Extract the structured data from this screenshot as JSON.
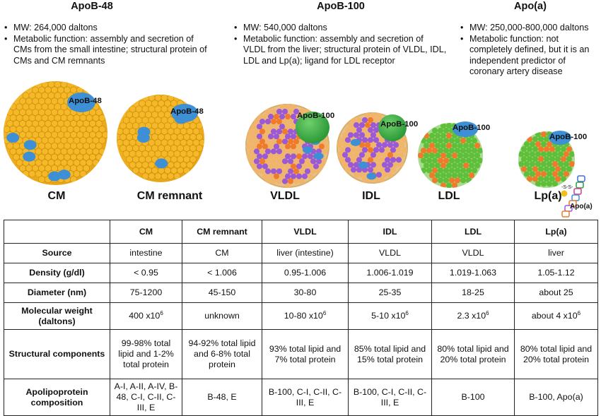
{
  "headers": [
    {
      "title": "ApoB-48",
      "bullets": [
        "MW: 264,000 daltons",
        "Metabolic function: assembly and secretion of CMs from the small intestine; structural protein of CMs and CM remnants"
      ]
    },
    {
      "title": "ApoB-100",
      "bullets": [
        "MW: 540,000 daltons",
        "Metabolic function: assembly and secretion of VLDL from the liver; structural protein of VLDL, IDL, LDL and Lp(a); ligand for LDL receptor"
      ]
    },
    {
      "title": "Apo(a)",
      "bullets": [
        "MW: 250,000-800,000 daltons",
        "Metabolic function: not completely defined, but it is an independent predictor of coronary artery disease"
      ]
    }
  ],
  "particles": [
    {
      "name": "CM",
      "apo": "ApoB-48"
    },
    {
      "name": "CM remnant",
      "apo": "ApoB-48"
    },
    {
      "name": "VLDL",
      "apo": "ApoB-100"
    },
    {
      "name": "IDL",
      "apo": "ApoB-100"
    },
    {
      "name": "LDL",
      "apo": "ApoB-100"
    },
    {
      "name": "Lp(a)",
      "apo": "ApoB-100",
      "extra_label": "Apo(a)",
      "link_label": "-S-S-"
    }
  ],
  "colors": {
    "core": "#f0b020",
    "apoB48": "#3d8fd6",
    "apoB100": "#2e9b3a",
    "triglyceride": "#9b59d6",
    "cholesterol_ester": "#f07a2a",
    "ldl_surface": "#5fbf3a"
  },
  "table": {
    "columns": [
      "CM",
      "CM remnant",
      "VLDL",
      "IDL",
      "LDL",
      "Lp(a)"
    ],
    "rows": [
      {
        "label": "Source",
        "cells": [
          "intestine",
          "CM",
          "liver (intestine)",
          "VLDL",
          "VLDL",
          "liver"
        ]
      },
      {
        "label": "Density (g/dl)",
        "cells": [
          "< 0.95",
          "< 1.006",
          "0.95-1.006",
          "1.006-1.019",
          "1.019-1.063",
          "1.05-1.12"
        ]
      },
      {
        "label": "Diameter (nm)",
        "cells": [
          "75-1200",
          "45-150",
          "30-80",
          "25-35",
          "18-25",
          "about 25"
        ]
      },
      {
        "label": "Molecular weight (daltons)",
        "cells": [
          {
            "base": "400 x10",
            "exp": "6"
          },
          {
            "base": "unknown",
            "exp": ""
          },
          {
            "base": "10-80 x10",
            "exp": "6"
          },
          {
            "base": "5-10 x10",
            "exp": "6"
          },
          {
            "base": "2.3 x10",
            "exp": "6"
          },
          {
            "base": "about 4 x10",
            "exp": "6"
          }
        ]
      },
      {
        "label": "Structural components",
        "cells": [
          "99-98% total lipid and 1-2% total protein",
          "94-92% total lipid and 6-8% total protein",
          "93% total lipid and 7% total protein",
          "85% total lipid and 15% total protein",
          "80% total lipid and 20% total protein",
          "80% total lipid and 20% total protein"
        ]
      },
      {
        "label": "Apolipoprotein composition",
        "cells": [
          "A-I, A-II, A-IV, B-48, C-I, C-II, C-III, E",
          "B-48, E",
          "B-100, C-I, C-II, C-III, E",
          "B-100, C-I, C-II, C-III, E",
          "B-100",
          "B-100, Apo(a)"
        ]
      }
    ]
  }
}
